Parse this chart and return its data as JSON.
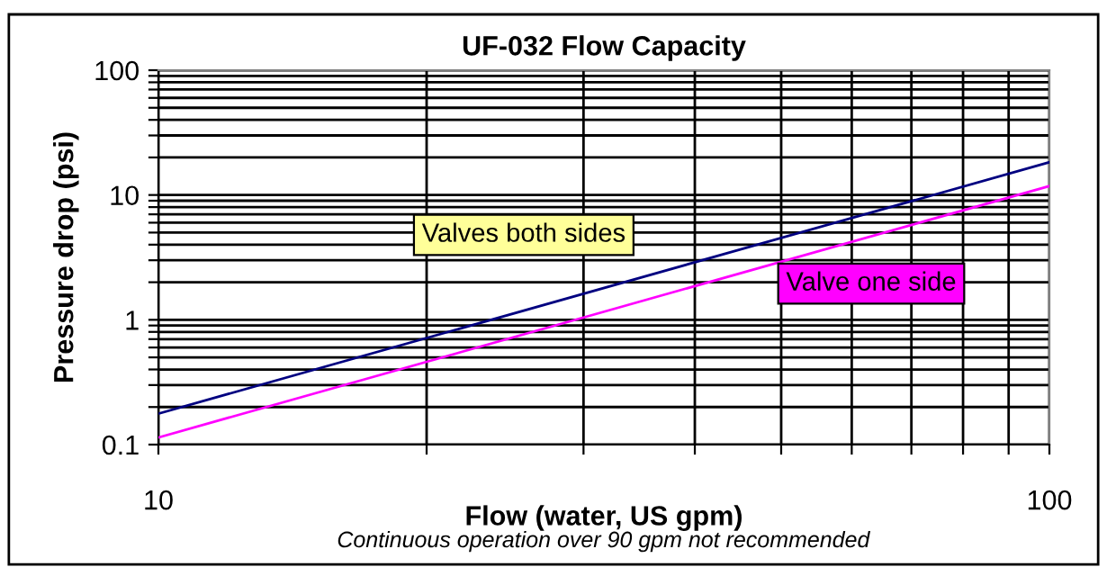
{
  "chart_data": {
    "type": "line",
    "title": "UF-032 Flow Capacity",
    "xlabel": "Flow (water, US gpm)",
    "ylabel": "Pressure drop (psi)",
    "annotations": [
      "Continuous operation over 90 gpm not recommended"
    ],
    "x": [
      10,
      100
    ],
    "series": [
      {
        "name": "Valves both sides",
        "color": "#000080",
        "values": [
          0.177,
          18.3
        ]
      },
      {
        "name": "Valve one side",
        "color": "#ff00ff",
        "values": [
          0.114,
          11.8
        ]
      }
    ],
    "log": "xy",
    "xlim": [
      10,
      100
    ],
    "ylim": [
      0.1,
      100
    ],
    "xticks": [
      10,
      {
        "value": 20,
        "label": null
      },
      {
        "value": 30,
        "label": null
      },
      {
        "value": 40,
        "label": null
      },
      {
        "value": 50,
        "label": null
      },
      {
        "value": 60,
        "label": null
      },
      {
        "value": 70,
        "label": null
      },
      {
        "value": 80,
        "label": null
      },
      {
        "value": 90,
        "label": null
      },
      100
    ],
    "yticks": [
      {
        "value": 0.1,
        "label": "0.1"
      },
      {
        "value": 0.2,
        "label": null
      },
      {
        "value": 0.3,
        "label": null
      },
      {
        "value": 0.4,
        "label": null
      },
      {
        "value": 0.5,
        "label": null
      },
      {
        "value": 0.6,
        "label": null
      },
      {
        "value": 0.7,
        "label": null
      },
      {
        "value": 0.8,
        "label": null
      },
      {
        "value": 0.9,
        "label": null
      },
      1,
      {
        "value": 2,
        "label": null
      },
      {
        "value": 3,
        "label": null
      },
      {
        "value": 4,
        "label": null
      },
      {
        "value": 5,
        "label": null
      },
      {
        "value": 6,
        "label": null
      },
      {
        "value": 7,
        "label": null
      },
      {
        "value": 8,
        "label": null
      },
      {
        "value": 9,
        "label": null
      },
      10,
      {
        "value": 20,
        "label": null
      },
      {
        "value": 30,
        "label": null
      },
      {
        "value": 40,
        "label": null
      },
      {
        "value": 50,
        "label": null
      },
      {
        "value": 60,
        "label": null
      },
      {
        "value": 70,
        "label": null
      },
      {
        "value": 80,
        "label": null
      },
      {
        "value": 90,
        "label": null
      },
      100
    ],
    "grid": true,
    "legend": false,
    "marker": "none",
    "line_style": "solid"
  }
}
